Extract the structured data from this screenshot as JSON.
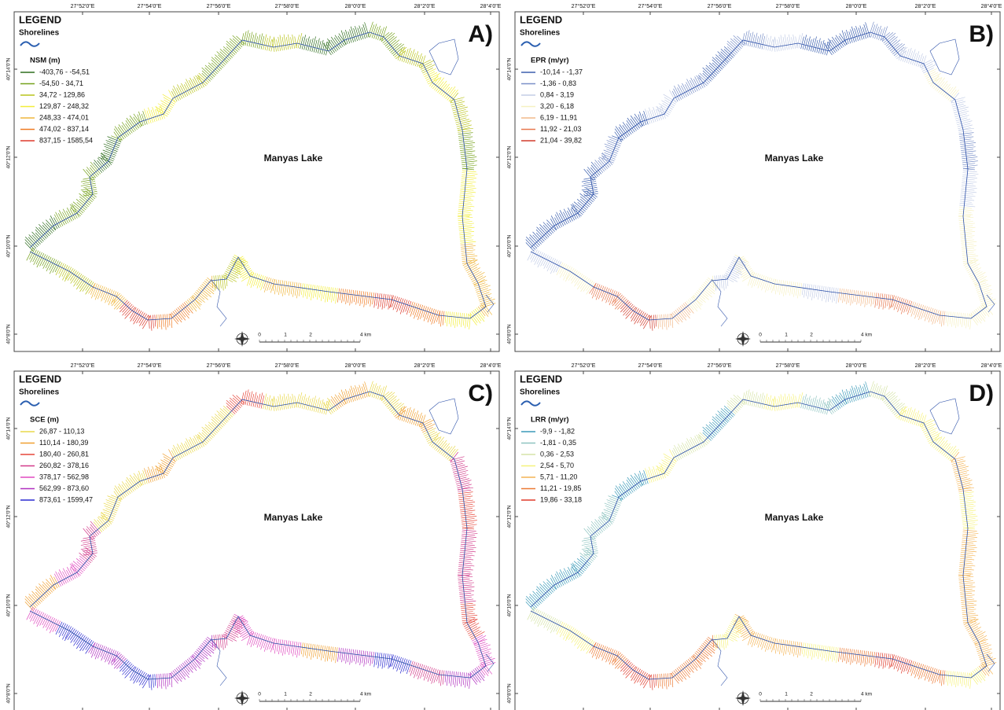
{
  "lon_labels": [
    "27°52'0\"E",
    "27°54'0\"E",
    "27°56'0\"E",
    "27°58'0\"E",
    "28°0'0\"E",
    "28°2'0\"E",
    "28°4'0\"E"
  ],
  "lat_labels": [
    "40°14'0\"N",
    "40°12'0\"N",
    "40°10'0\"N",
    "40°8'0\"N"
  ],
  "panels": [
    {
      "label": "A)",
      "legend": "LEGEND",
      "shorelines": "Shorelines",
      "legend_title": "NSM (m)",
      "lake": "Manyas Lake",
      "classes": [
        {
          "label": "-403,76 - -54,51",
          "color": "#2f6e1e"
        },
        {
          "label": "-54,50 - 34,71",
          "color": "#76a21c"
        },
        {
          "label": "34,72 - 129,86",
          "color": "#b9c41c"
        },
        {
          "label": "129,87 - 248,32",
          "color": "#f2ee3a"
        },
        {
          "label": "248,33 - 474,01",
          "color": "#efb63c"
        },
        {
          "label": "474,02 - 837,14",
          "color": "#ef7a22"
        },
        {
          "label": "837,15 - 1585,54",
          "color": "#dd3a2b"
        }
      ],
      "scale": [
        "0",
        "1",
        "2",
        "4 km"
      ]
    },
    {
      "label": "B)",
      "legend": "LEGEND",
      "shorelines": "Shorelines",
      "legend_title": "EPR (m/yr)",
      "lake": "Manyas Lake",
      "classes": [
        {
          "label": "-10,14 - -1,37",
          "color": "#3b5fae"
        },
        {
          "label": "-1,36 - 0,83",
          "color": "#7a90c8"
        },
        {
          "label": "0,84 - 3,19",
          "color": "#c3cde6"
        },
        {
          "label": "3,20 - 6,18",
          "color": "#f6f1c2"
        },
        {
          "label": "6,19 - 11,91",
          "color": "#f2b98a"
        },
        {
          "label": "11,92 - 21,03",
          "color": "#e8784f"
        },
        {
          "label": "21,04 - 39,82",
          "color": "#d23b2b"
        }
      ],
      "scale": [
        "0",
        "1",
        "2",
        "4 km"
      ]
    },
    {
      "label": "C)",
      "legend": "LEGEND",
      "shorelines": "Shorelines",
      "legend_title": "SCE (m)",
      "lake": "Manyas Lake",
      "classes": [
        {
          "label": "26,87 - 110,13",
          "color": "#e9d84a"
        },
        {
          "label": "110,14 - 180,39",
          "color": "#f0a030"
        },
        {
          "label": "180,40 - 260,81",
          "color": "#e6463a"
        },
        {
          "label": "260,82 - 378,16",
          "color": "#d23a8a"
        },
        {
          "label": "378,17 - 562,98",
          "color": "#e04ac0"
        },
        {
          "label": "562,99 - 873,60",
          "color": "#b030c0"
        },
        {
          "label": "873,61 - 1599,47",
          "color": "#2a2ad0"
        }
      ],
      "scale": [
        "0",
        "1",
        "2",
        "4 km"
      ]
    },
    {
      "label": "D)",
      "legend": "LEGEND",
      "shorelines": "Shorelines",
      "legend_title": "LRR (m/yr)",
      "lake": "Manyas Lake",
      "classes": [
        {
          "label": "-9,9 - -1,82",
          "color": "#3a9ab8"
        },
        {
          "label": "-1,81 - 0,35",
          "color": "#8ec4c0"
        },
        {
          "label": "0,36 - 2,53",
          "color": "#d6e4a8"
        },
        {
          "label": "2,54 - 5,70",
          "color": "#f6f27a"
        },
        {
          "label": "5,71 - 11,20",
          "color": "#f4b454"
        },
        {
          "label": "11,21 - 19,85",
          "color": "#ec7a34"
        },
        {
          "label": "19,86 - 33,18",
          "color": "#e03a2a"
        }
      ],
      "scale": [
        "0",
        "1",
        "2",
        "4 km"
      ]
    }
  ]
}
